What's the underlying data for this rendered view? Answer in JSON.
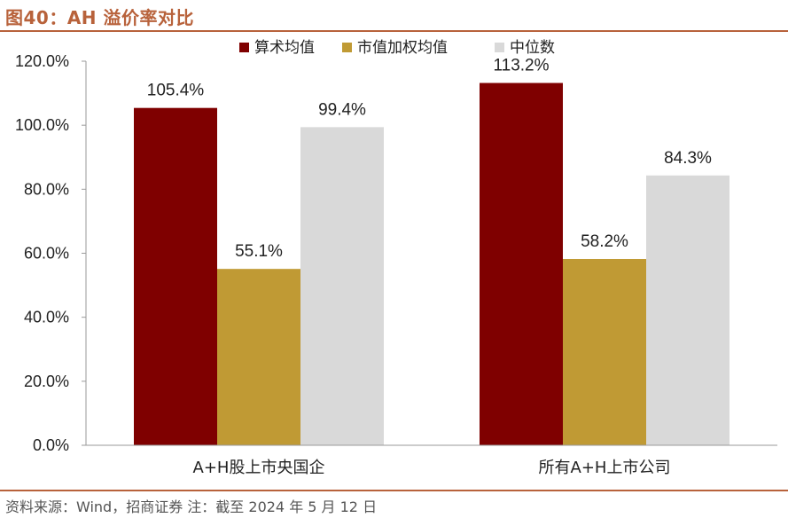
{
  "title": "图40：AH 溢价率对比",
  "source": "资料来源：Wind，招商证券    注：截至 2024 年 5 月 12 日",
  "chart_data": {
    "type": "bar",
    "categories": [
      "A+H股上市央国企",
      "所有A+H上市公司"
    ],
    "series": [
      {
        "name": "算术均值",
        "values": [
          105.4,
          113.2
        ],
        "labels": [
          "105.4%",
          "113.2%"
        ],
        "color": "#7f0000"
      },
      {
        "name": "市值加权均值",
        "values": [
          55.1,
          58.2
        ],
        "labels": [
          "55.1%",
          "58.2%"
        ],
        "color": "#c09a34"
      },
      {
        "name": "中位数",
        "values": [
          99.4,
          84.3
        ],
        "labels": [
          "99.4%",
          "84.3%"
        ],
        "color": "#d9d9d9"
      }
    ],
    "yticks": [
      "0.0%",
      "20.0%",
      "40.0%",
      "60.0%",
      "80.0%",
      "100.0%",
      "120.0%"
    ],
    "ylim": [
      0,
      120
    ],
    "legend_position": "top",
    "grid": false
  }
}
